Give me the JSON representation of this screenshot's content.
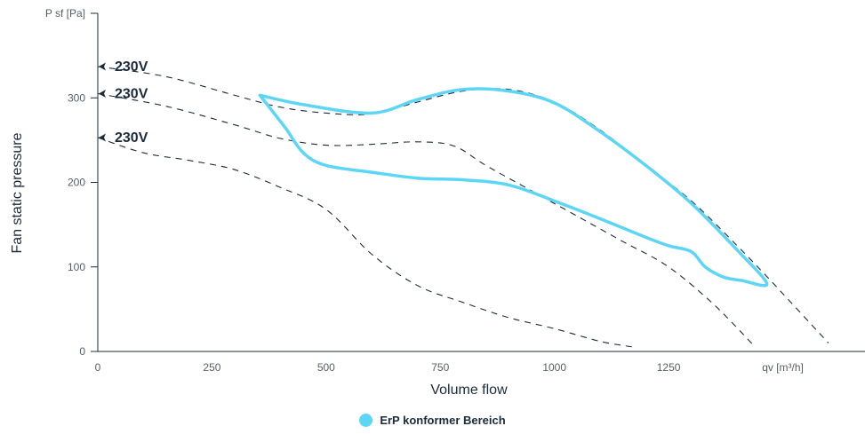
{
  "chart_data": {
    "type": "line",
    "title": "",
    "y_axis_unit_label": "P sf [Pa]",
    "ylabel": "Fan static pressure",
    "xlabel": "Volume flow",
    "x_axis_unit_label": "qv [m³/h]",
    "x_ticks": [
      "0",
      "250",
      "500",
      "750",
      "1000",
      "1250"
    ],
    "y_ticks": [
      "0",
      "100",
      "200",
      "300"
    ],
    "xlim": [
      0,
      1680
    ],
    "ylim": [
      0,
      400
    ],
    "series": [
      {
        "label": "230V",
        "style": "dashed",
        "points": [
          [
            0,
            337
          ],
          [
            150,
            325
          ],
          [
            300,
            303
          ],
          [
            400,
            289
          ],
          [
            500,
            282
          ],
          [
            600,
            281
          ],
          [
            700,
            295
          ],
          [
            800,
            308
          ],
          [
            900,
            310
          ],
          [
            1000,
            295
          ],
          [
            1100,
            262
          ],
          [
            1200,
            220
          ],
          [
            1300,
            178
          ],
          [
            1400,
            125
          ],
          [
            1480,
            80
          ],
          [
            1600,
            10
          ]
        ]
      },
      {
        "label": "230V",
        "style": "dashed",
        "points": [
          [
            0,
            305
          ],
          [
            150,
            290
          ],
          [
            300,
            268
          ],
          [
            400,
            252
          ],
          [
            500,
            244
          ],
          [
            600,
            245
          ],
          [
            700,
            248
          ],
          [
            780,
            243
          ],
          [
            850,
            220
          ],
          [
            950,
            190
          ],
          [
            1050,
            160
          ],
          [
            1150,
            130
          ],
          [
            1250,
            100
          ],
          [
            1350,
            55
          ],
          [
            1440,
            5
          ]
        ]
      },
      {
        "label": "230V",
        "style": "dashed",
        "points": [
          [
            0,
            253
          ],
          [
            100,
            235
          ],
          [
            200,
            226
          ],
          [
            300,
            215
          ],
          [
            400,
            194
          ],
          [
            500,
            168
          ],
          [
            600,
            115
          ],
          [
            700,
            78
          ],
          [
            800,
            58
          ],
          [
            900,
            40
          ],
          [
            1000,
            27
          ],
          [
            1100,
            12
          ],
          [
            1175,
            5
          ]
        ]
      }
    ],
    "erp_region": {
      "label": "ErP konformer Bereich",
      "color": "#5dd6f5",
      "boundary": [
        [
          355,
          303
        ],
        [
          450,
          292
        ],
        [
          600,
          282
        ],
        [
          700,
          298
        ],
        [
          800,
          310
        ],
        [
          900,
          308
        ],
        [
          1000,
          294
        ],
        [
          1100,
          260
        ],
        [
          1200,
          220
        ],
        [
          1300,
          175
        ],
        [
          1400,
          120
        ],
        [
          1465,
          80
        ],
        [
          1410,
          84
        ],
        [
          1370,
          88
        ],
        [
          1330,
          100
        ],
        [
          1300,
          118
        ],
        [
          1250,
          125
        ],
        [
          1200,
          135
        ],
        [
          1100,
          157
        ],
        [
          1000,
          178
        ],
        [
          900,
          197
        ],
        [
          800,
          203
        ],
        [
          700,
          205
        ],
        [
          600,
          212
        ],
        [
          500,
          220
        ],
        [
          450,
          235
        ],
        [
          410,
          265
        ],
        [
          355,
          303
        ]
      ]
    },
    "legend_position": "bottom-center",
    "grid": false
  },
  "legend": {
    "label": "ErP konformer Bereich",
    "color": "#5dd6f5"
  }
}
